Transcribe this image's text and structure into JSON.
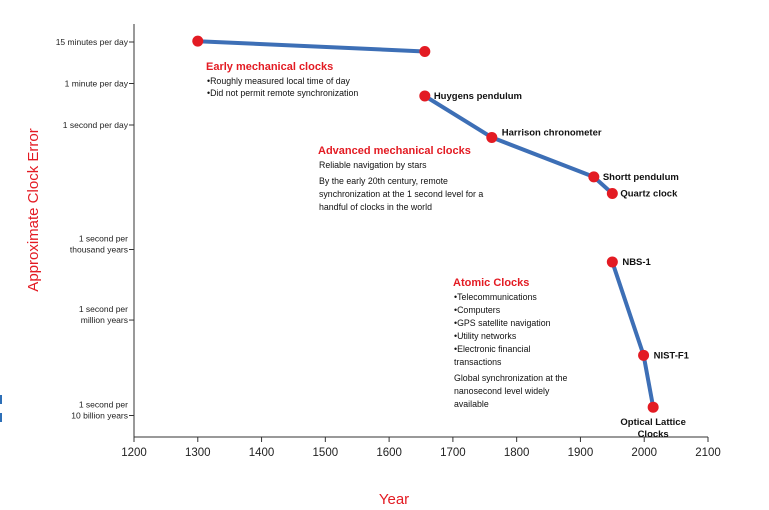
{
  "colors": {
    "accent": "#e31b23",
    "line": "#3d6fb6",
    "point": "#e31b23",
    "axis": "#333333",
    "text": "#111111"
  },
  "chart_data": {
    "type": "line",
    "xlabel": "Year",
    "ylabel": "Approximate Clock Error",
    "xlim": [
      1200,
      2100
    ],
    "x_ticks": [
      1200,
      1300,
      1400,
      1500,
      1600,
      1700,
      1800,
      1900,
      2000,
      2100
    ],
    "y_ticks": [
      {
        "label": [
          "15 minutes per day"
        ],
        "level": 0
      },
      {
        "label": [
          "1 minute per day"
        ],
        "level": 1
      },
      {
        "label": [
          "1 second per day"
        ],
        "level": 2
      },
      {
        "label": [
          "1 second per",
          "thousand years"
        ],
        "level": 5
      },
      {
        "label": [
          "1 second per",
          "million years"
        ],
        "level": 6.7
      },
      {
        "label": [
          "1 second per",
          "10 billion years"
        ],
        "level": 9
      }
    ],
    "series": [
      {
        "points": [
          {
            "year": 1300,
            "level": -0.02
          },
          {
            "year": 1656,
            "level": 0.23
          }
        ]
      },
      {
        "points": [
          {
            "year": 1656,
            "level": 1.3
          },
          {
            "year": 1761,
            "level": 2.3
          },
          {
            "year": 1921,
            "level": 3.25
          },
          {
            "year": 1950,
            "level": 3.65
          }
        ]
      },
      {
        "points": [
          {
            "year": 1950,
            "level": 5.3
          },
          {
            "year": 1999,
            "level": 7.55
          },
          {
            "year": 2014,
            "level": 8.8
          }
        ]
      }
    ],
    "point_labels": [
      {
        "text": [
          "Huygens pendulum"
        ],
        "year": 1656,
        "level": 1.3
      },
      {
        "text": [
          "Harrison chronometer"
        ],
        "year": 1761,
        "level": 2.3
      },
      {
        "text": [
          "Shortt pendulum"
        ],
        "year": 1921,
        "level": 3.25
      },
      {
        "text": [
          "Quartz clock"
        ],
        "year": 1950,
        "level": 3.65
      },
      {
        "text": [
          "NBS-1"
        ],
        "year": 1950,
        "level": 5.3
      },
      {
        "text": [
          "NIST-F1"
        ],
        "year": 1999,
        "level": 7.55
      },
      {
        "text": [
          "Optical Lattice",
          "Clocks"
        ],
        "year": 2014,
        "level": 8.8
      }
    ],
    "annotations": [
      {
        "title": "Early mechanical clocks",
        "lines": [
          "•Roughly measured local time of day",
          "•Did not permit remote synchronization"
        ]
      },
      {
        "title": "Advanced mechanical clocks",
        "lines": [
          "Reliable navigation by stars",
          "By the early 20th century, remote",
          "synchronization at the 1 second level for a",
          "handful of clocks in the world"
        ]
      },
      {
        "title": "Atomic Clocks",
        "lines": [
          "•Telecommunications",
          "•Computers",
          "•GPS satellite navigation",
          "•Utility networks",
          "•Electronic financial",
          "  transactions",
          "Global synchronization at the",
          "nanosecond level widely",
          "available"
        ]
      }
    ]
  }
}
